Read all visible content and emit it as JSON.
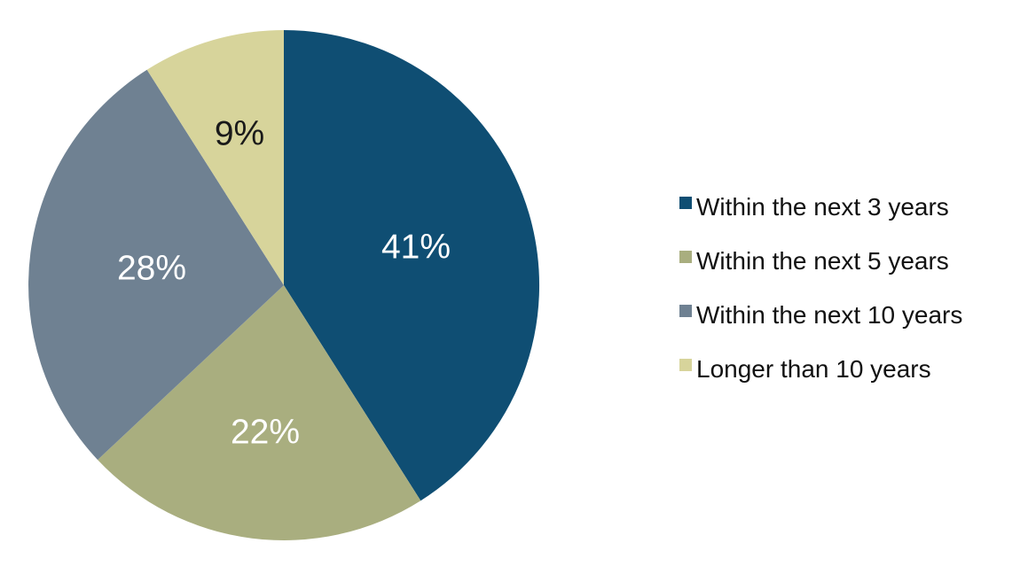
{
  "chart_data": {
    "type": "pie",
    "title": "",
    "background": "#FFFFFF",
    "start_angle_deg": 0,
    "direction": "clockwise-from-top",
    "legend_position": "right",
    "slices": [
      {
        "label": "Within the next 3 years",
        "value": 41,
        "pct_label": "41%",
        "color": "#0F4E73",
        "label_color": "#FFFFFF"
      },
      {
        "label": "Within the next 5 years",
        "value": 22,
        "pct_label": "22%",
        "color": "#A9AE7F",
        "label_color": "#FFFFFF"
      },
      {
        "label": "Within the next 10 years",
        "value": 28,
        "pct_label": "28%",
        "color": "#6F8192",
        "label_color": "#FFFFFF"
      },
      {
        "label": "Longer than 10 years",
        "value": 9,
        "pct_label": "9%",
        "color": "#D7D49B",
        "label_color": "#1A1A1A"
      }
    ],
    "legend_entries": [
      "Within the next 3 years",
      "Within the next 5 years",
      "Within the next 10 years",
      "Longer than 10 years"
    ]
  }
}
